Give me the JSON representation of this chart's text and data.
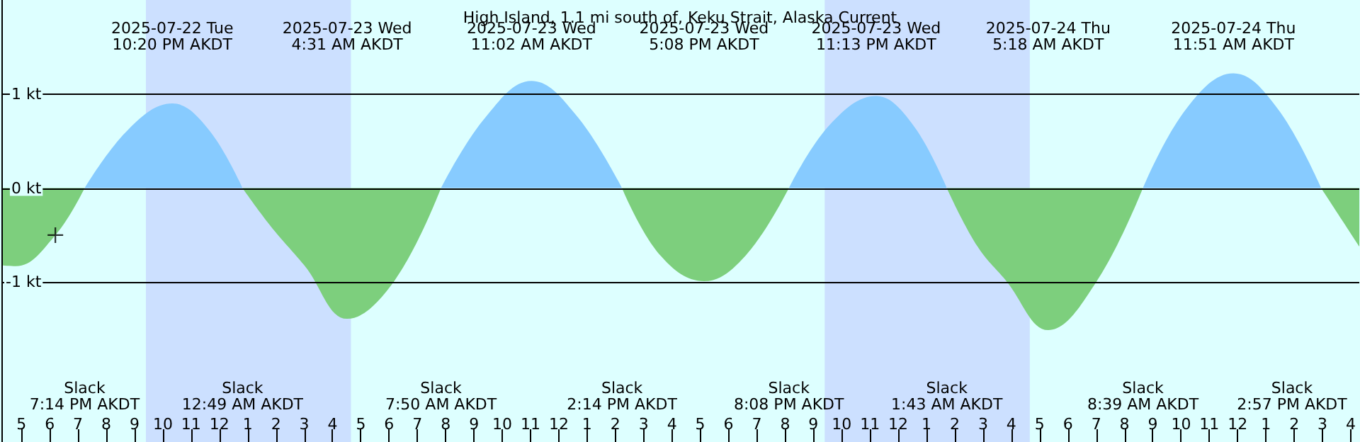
{
  "chart_data": {
    "type": "area",
    "title": "High Island, 1.1 mi south of, Keku Strait, Alaska Current",
    "x": [
      "2025-07-22T16:18",
      "2025-07-22T16:48",
      "2025-07-22T18:12",
      "2025-07-22T19:14",
      "2025-07-22T20:48",
      "2025-07-22T22:20",
      "2025-07-22T23:36",
      "2025-07-23T00:49",
      "2025-07-23T01:48",
      "2025-07-23T03:00",
      "2025-07-23T04:31",
      "2025-07-23T06:12",
      "2025-07-23T07:50",
      "2025-07-23T09:24",
      "2025-07-23T11:02",
      "2025-07-23T12:36",
      "2025-07-23T14:14",
      "2025-07-23T15:36",
      "2025-07-23T17:08",
      "2025-07-23T18:36",
      "2025-07-23T20:08",
      "2025-07-23T21:36",
      "2025-07-23T23:13",
      "2025-07-24T00:30",
      "2025-07-24T01:43",
      "2025-07-24T02:48",
      "2025-07-24T03:48",
      "2025-07-24T05:18",
      "2025-07-24T07:00",
      "2025-07-24T08:39",
      "2025-07-24T10:12",
      "2025-07-24T11:51",
      "2025-07-24T13:24",
      "2025-07-24T14:57",
      "2025-07-24T16:18"
    ],
    "series": [
      {
        "color": "#87cbff",
        "values": [
          null,
          null,
          null,
          0,
          0.63,
          0.9,
          0.63,
          0,
          null,
          null,
          null,
          null,
          0,
          0.75,
          1.14,
          0.78,
          0,
          null,
          null,
          null,
          0,
          0.68,
          0.98,
          0.68,
          0,
          null,
          null,
          null,
          null,
          0,
          0.85,
          1.22,
          0.85,
          0,
          null
        ]
      },
      {
        "color": "#7dcf7d",
        "values": [
          -0.82,
          -0.83,
          -0.5,
          0,
          null,
          null,
          null,
          0,
          -0.4,
          -0.82,
          -1.39,
          -0.98,
          0,
          null,
          null,
          null,
          0,
          -0.72,
          -0.99,
          -0.72,
          0,
          null,
          null,
          null,
          0,
          -0.62,
          -0.98,
          -1.51,
          -1.0,
          0,
          null,
          null,
          null,
          0,
          -0.62
        ]
      },
      {
        "type": "scatter",
        "marker": "cross",
        "color": "#000000",
        "x": [
          "2025-07-22T18:12"
        ],
        "values": [
          -0.5
        ]
      }
    ],
    "xlim": [
      "2025-07-22T16:18",
      "2025-07-24T16:18"
    ],
    "xticks": [
      {
        "value": "2025-07-22T17:00",
        "label": "5"
      },
      {
        "value": "2025-07-22T18:00",
        "label": "6"
      },
      {
        "value": "2025-07-22T19:00",
        "label": "7"
      },
      {
        "value": "2025-07-22T20:00",
        "label": "8"
      },
      {
        "value": "2025-07-22T21:00",
        "label": "9"
      },
      {
        "value": "2025-07-22T22:00",
        "label": "10"
      },
      {
        "value": "2025-07-22T23:00",
        "label": "11"
      },
      {
        "value": "2025-07-23T00:00",
        "label": "12"
      },
      {
        "value": "2025-07-23T01:00",
        "label": "1"
      },
      {
        "value": "2025-07-23T02:00",
        "label": "2"
      },
      {
        "value": "2025-07-23T03:00",
        "label": "3"
      },
      {
        "value": "2025-07-23T04:00",
        "label": "4"
      },
      {
        "value": "2025-07-23T05:00",
        "label": "5"
      },
      {
        "value": "2025-07-23T06:00",
        "label": "6"
      },
      {
        "value": "2025-07-23T07:00",
        "label": "7"
      },
      {
        "value": "2025-07-23T08:00",
        "label": "8"
      },
      {
        "value": "2025-07-23T09:00",
        "label": "9"
      },
      {
        "value": "2025-07-23T10:00",
        "label": "10"
      },
      {
        "value": "2025-07-23T11:00",
        "label": "11"
      },
      {
        "value": "2025-07-23T12:00",
        "label": "12"
      },
      {
        "value": "2025-07-23T13:00",
        "label": "1"
      },
      {
        "value": "2025-07-23T14:00",
        "label": "2"
      },
      {
        "value": "2025-07-23T15:00",
        "label": "3"
      },
      {
        "value": "2025-07-23T16:00",
        "label": "4"
      },
      {
        "value": "2025-07-23T17:00",
        "label": "5"
      },
      {
        "value": "2025-07-23T18:00",
        "label": "6"
      },
      {
        "value": "2025-07-23T19:00",
        "label": "7"
      },
      {
        "value": "2025-07-23T20:00",
        "label": "8"
      },
      {
        "value": "2025-07-23T21:00",
        "label": "9"
      },
      {
        "value": "2025-07-23T22:00",
        "label": "10"
      },
      {
        "value": "2025-07-23T23:00",
        "label": "11"
      },
      {
        "value": "2025-07-24T00:00",
        "label": "12"
      },
      {
        "value": "2025-07-24T01:00",
        "label": "1"
      },
      {
        "value": "2025-07-24T02:00",
        "label": "2"
      },
      {
        "value": "2025-07-24T03:00",
        "label": "3"
      },
      {
        "value": "2025-07-24T04:00",
        "label": "4"
      },
      {
        "value": "2025-07-24T05:00",
        "label": "5"
      },
      {
        "value": "2025-07-24T06:00",
        "label": "6"
      },
      {
        "value": "2025-07-24T07:00",
        "label": "7"
      },
      {
        "value": "2025-07-24T08:00",
        "label": "8"
      },
      {
        "value": "2025-07-24T09:00",
        "label": "9"
      },
      {
        "value": "2025-07-24T10:00",
        "label": "10"
      },
      {
        "value": "2025-07-24T11:00",
        "label": "11"
      },
      {
        "value": "2025-07-24T12:00",
        "label": "12"
      },
      {
        "value": "2025-07-24T13:00",
        "label": "1"
      },
      {
        "value": "2025-07-24T14:00",
        "label": "2"
      },
      {
        "value": "2025-07-24T15:00",
        "label": "3"
      },
      {
        "value": "2025-07-24T16:00",
        "label": "4"
      }
    ],
    "ylim": [
      -2.7,
      2.0
    ],
    "yticks": [
      {
        "value": -1,
        "label": "-1 kt"
      },
      {
        "value": 0,
        "label": "0 kt"
      },
      {
        "value": 1,
        "label": "1 kt"
      }
    ],
    "grid": "y",
    "bands": [
      {
        "axis": "x",
        "from": "2025-07-22T21:24",
        "to": "2025-07-23T04:39",
        "color": "#cce0ff"
      },
      {
        "axis": "x",
        "from": "2025-07-23T21:24",
        "to": "2025-07-24T04:39",
        "color": "#cce0ff"
      }
    ],
    "annotations": [
      "2025-07-22 Tue\n10:20 PM AKDT",
      "2025-07-23 Wed\n4:31 AM AKDT",
      "2025-07-23 Wed\n11:02 AM AKDT",
      "2025-07-23 Wed\n5:08 PM AKDT",
      "2025-07-23 Wed\n11:13 PM AKDT",
      "2025-07-24 Thu\n5:18 AM AKDT",
      "2025-07-24 Thu\n11:51 AM AKDT",
      "Slack\n7:14 PM AKDT",
      "Slack\n12:49 AM AKDT",
      "Slack\n7:50 AM AKDT",
      "Slack\n2:14 PM AKDT",
      "Slack\n8:08 PM AKDT",
      "Slack\n1:43 AM AKDT",
      "Slack\n8:39 AM AKDT",
      "Slack\n2:57 PM AKDT"
    ]
  }
}
